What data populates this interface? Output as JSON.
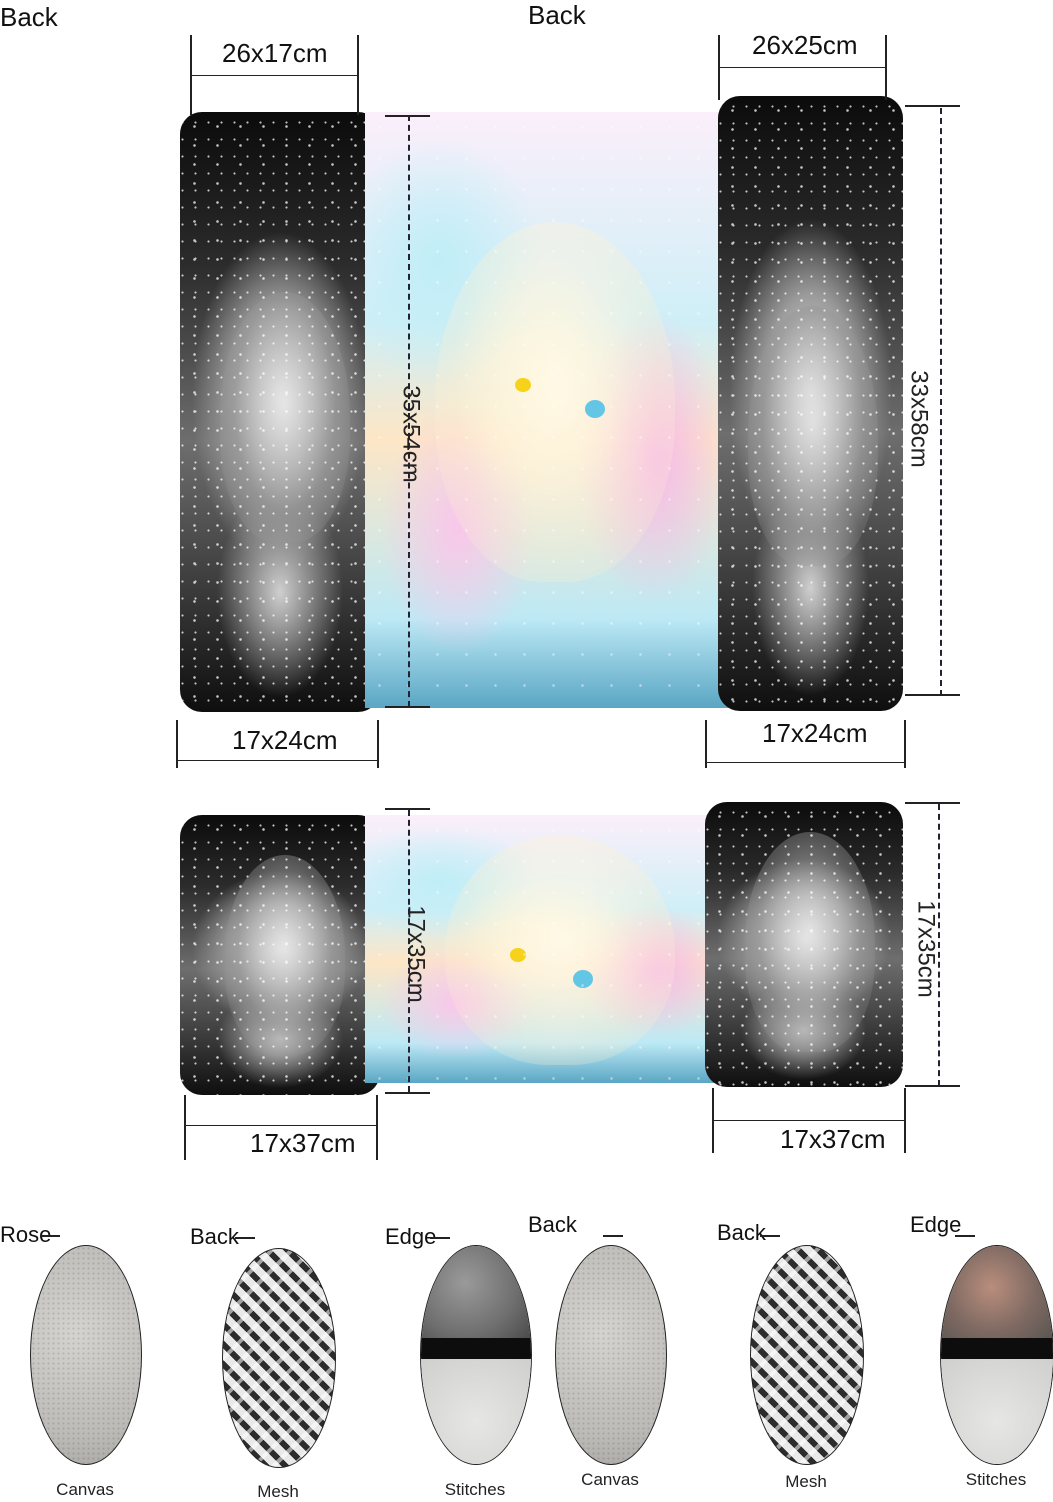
{
  "panels": {
    "top_left_corner": "Back",
    "top_center": "Back"
  },
  "dimensions": {
    "top_left_width": "26x17cm",
    "top_right_width": "26x25cm",
    "center_height_top": "35x54cm",
    "right_height_top": "33x58cm",
    "bottom_left_width_top": "17x24cm",
    "bottom_right_width_top": "17x24cm",
    "center_height_bottom": "17x35cm",
    "right_height_bottom": "17x35cm",
    "bottom_left_width_bottom": "17x37cm",
    "bottom_right_width_bottom": "17x37cm"
  },
  "material_labels": [
    "Rose",
    "Back",
    "Edge",
    "Back",
    "Back",
    "Edge"
  ],
  "material_captions": [
    "Canvas",
    "Mesh",
    "Stitches",
    "Canvas",
    "Mesh",
    "Stitches"
  ],
  "colors": {
    "accent_yellow_eye": "#f7d21a",
    "accent_blue_eye": "#63c6e4",
    "dashed_line": "#223355"
  }
}
